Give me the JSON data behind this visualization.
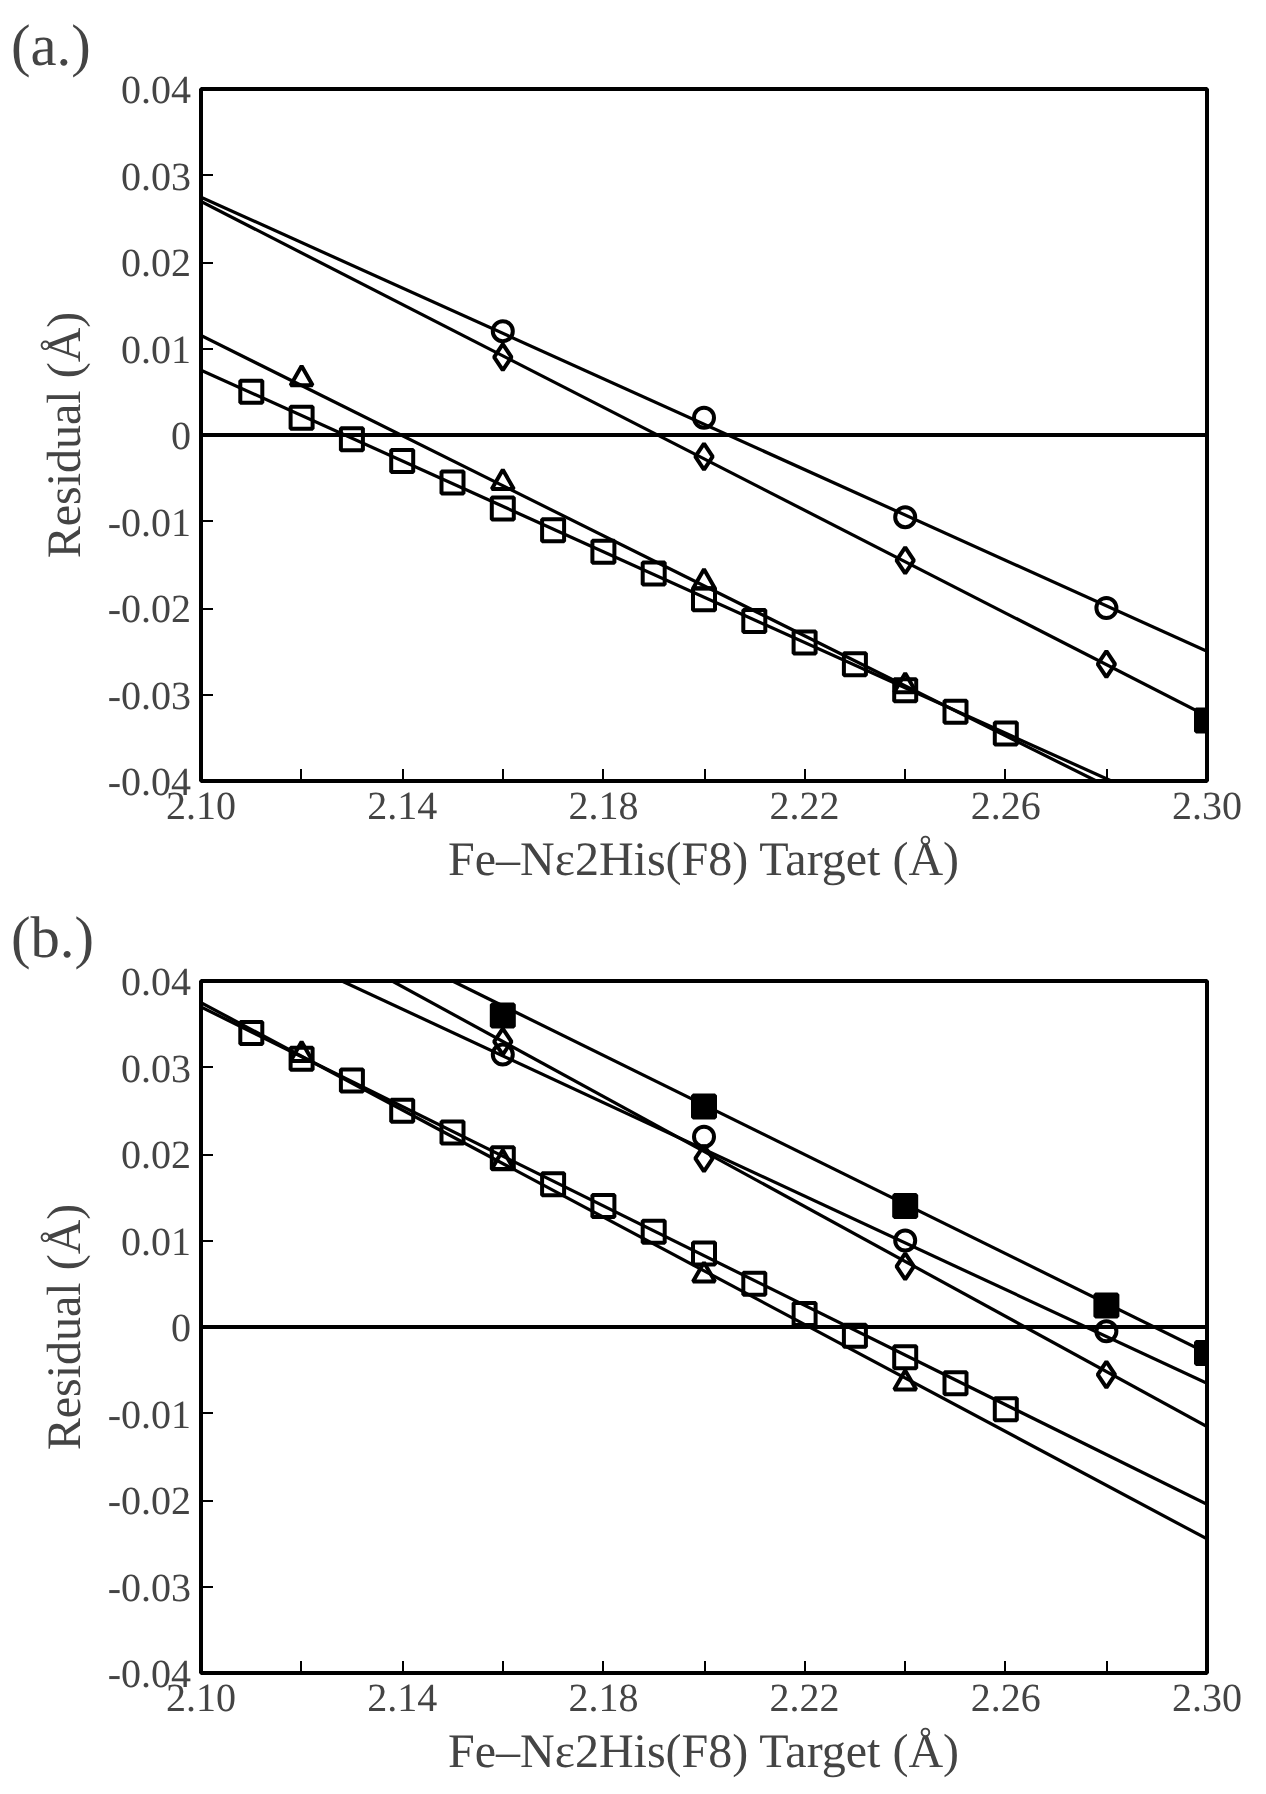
{
  "chart_data": [
    {
      "type": "scatter",
      "title": "(a.)",
      "xlabel": "Fe–Nε2His(F8) Target (Å)",
      "ylabel": "Residual (Å)",
      "xlim": [
        2.1,
        2.3
      ],
      "ylim": [
        -0.04,
        0.04
      ],
      "xticks": [
        {
          "value": 2.1,
          "label": "2.10"
        },
        {
          "value": 2.12,
          "label": null
        },
        {
          "value": 2.14,
          "label": "2.14"
        },
        {
          "value": 2.16,
          "label": null
        },
        {
          "value": 2.18,
          "label": "2.18"
        },
        {
          "value": 2.2,
          "label": null
        },
        {
          "value": 2.22,
          "label": "2.22"
        },
        {
          "value": 2.24,
          "label": null
        },
        {
          "value": 2.26,
          "label": "2.26"
        },
        {
          "value": 2.28,
          "label": null
        },
        {
          "value": 2.3,
          "label": "2.30"
        }
      ],
      "yticks": [
        -0.04,
        -0.03,
        -0.02,
        -0.01,
        0,
        0.01,
        0.02,
        0.03,
        0.04
      ],
      "grid": false,
      "ref_lines": [
        {
          "axis": "y",
          "value": 0,
          "color": "#000000"
        }
      ],
      "series": [
        {
          "type": "line",
          "color": "#000000",
          "x": [
            2.1,
            2.3
          ],
          "values": [
            0.0275,
            -0.025
          ],
          "marker": "none"
        },
        {
          "type": "line",
          "color": "#000000",
          "x": [
            2.1,
            2.3
          ],
          "values": [
            0.027,
            -0.0325
          ],
          "marker": "none"
        },
        {
          "type": "line",
          "color": "#000000",
          "x": [
            2.1,
            2.278
          ],
          "values": [
            0.0115,
            -0.04
          ],
          "marker": "none"
        },
        {
          "type": "line",
          "color": "#000000",
          "x": [
            2.1,
            2.281
          ],
          "values": [
            0.0075,
            -0.04
          ],
          "marker": "none"
        },
        {
          "marker": "circle",
          "x": [
            2.16,
            2.2,
            2.24,
            2.28
          ],
          "values": [
            0.012,
            0.002,
            -0.0095,
            -0.02
          ]
        },
        {
          "marker": "diamond",
          "x": [
            2.16,
            2.2,
            2.24,
            2.28
          ],
          "values": [
            0.009,
            -0.0025,
            -0.0145,
            -0.0265
          ]
        },
        {
          "marker": "square",
          "x": [
            2.11,
            2.12,
            2.13,
            2.14,
            2.15,
            2.16,
            2.17,
            2.18,
            2.19,
            2.2,
            2.21,
            2.22,
            2.23,
            2.24,
            2.25,
            2.26
          ],
          "values": [
            0.005,
            0.002,
            -0.0005,
            -0.003,
            -0.0055,
            -0.0085,
            -0.011,
            -0.0135,
            -0.016,
            -0.019,
            -0.0215,
            -0.024,
            -0.0265,
            -0.0295,
            -0.032,
            -0.0345
          ]
        },
        {
          "marker": "triangle",
          "x": [
            2.12,
            2.16,
            2.2,
            2.24
          ],
          "values": [
            0.0065,
            -0.0055,
            -0.017,
            -0.029
          ]
        },
        {
          "color": "#000000",
          "marker": "square",
          "x": [
            2.3
          ],
          "values": [
            -0.033
          ]
        }
      ]
    },
    {
      "type": "scatter",
      "title": "(b.)",
      "xlabel": "Fe–Nε2His(F8) Target (Å)",
      "ylabel": "Residual (Å)",
      "xlim": [
        2.1,
        2.3
      ],
      "ylim": [
        -0.04,
        0.04
      ],
      "xticks": [
        {
          "value": 2.1,
          "label": "2.10"
        },
        {
          "value": 2.12,
          "label": null
        },
        {
          "value": 2.14,
          "label": "2.14"
        },
        {
          "value": 2.16,
          "label": null
        },
        {
          "value": 2.18,
          "label": "2.18"
        },
        {
          "value": 2.2,
          "label": null
        },
        {
          "value": 2.22,
          "label": "2.22"
        },
        {
          "value": 2.24,
          "label": null
        },
        {
          "value": 2.26,
          "label": "2.26"
        },
        {
          "value": 2.28,
          "label": null
        },
        {
          "value": 2.3,
          "label": "2.30"
        }
      ],
      "yticks": [
        -0.04,
        -0.03,
        -0.02,
        -0.01,
        0,
        0.01,
        0.02,
        0.03,
        0.04
      ],
      "grid": false,
      "ref_lines": [
        {
          "axis": "y",
          "value": 0,
          "color": "#000000"
        }
      ],
      "series": [
        {
          "type": "line",
          "color": "#000000",
          "x": [
            2.15,
            2.3
          ],
          "values": [
            0.04,
            -0.003
          ],
          "marker": "none"
        },
        {
          "type": "line",
          "color": "#000000",
          "x": [
            2.128,
            2.3
          ],
          "values": [
            0.04,
            -0.0065
          ],
          "marker": "none"
        },
        {
          "type": "line",
          "color": "#000000",
          "x": [
            2.138,
            2.3
          ],
          "values": [
            0.04,
            -0.0115
          ],
          "marker": "none"
        },
        {
          "type": "line",
          "color": "#000000",
          "x": [
            2.1,
            2.3
          ],
          "values": [
            0.037,
            -0.0205
          ],
          "marker": "none"
        },
        {
          "type": "line",
          "color": "#000000",
          "x": [
            2.1,
            2.3
          ],
          "values": [
            0.0375,
            -0.0245
          ],
          "marker": "none"
        },
        {
          "color": "#000000",
          "marker": "square",
          "x": [
            2.16,
            2.2,
            2.24,
            2.28,
            2.3
          ],
          "values": [
            0.036,
            0.0255,
            0.014,
            0.0025,
            -0.003
          ]
        },
        {
          "marker": "circle",
          "x": [
            2.16,
            2.2,
            2.24,
            2.28
          ],
          "values": [
            0.0315,
            0.022,
            0.01,
            -0.0005
          ]
        },
        {
          "marker": "diamond",
          "x": [
            2.16,
            2.2,
            2.24,
            2.28
          ],
          "values": [
            0.033,
            0.0195,
            0.007,
            -0.0055
          ]
        },
        {
          "marker": "square",
          "x": [
            2.11,
            2.12,
            2.13,
            2.14,
            2.15,
            2.16,
            2.17,
            2.18,
            2.19,
            2.2,
            2.21,
            2.22,
            2.23,
            2.24,
            2.25,
            2.26
          ],
          "values": [
            0.034,
            0.031,
            0.0285,
            0.025,
            0.0225,
            0.0195,
            0.0165,
            0.014,
            0.011,
            0.0085,
            0.005,
            0.0015,
            -0.001,
            -0.0035,
            -0.0065,
            -0.0095
          ]
        },
        {
          "marker": "triangle",
          "x": [
            2.12,
            2.16,
            2.2,
            2.24
          ],
          "values": [
            0.0315,
            0.019,
            0.006,
            -0.0065
          ]
        }
      ]
    }
  ]
}
